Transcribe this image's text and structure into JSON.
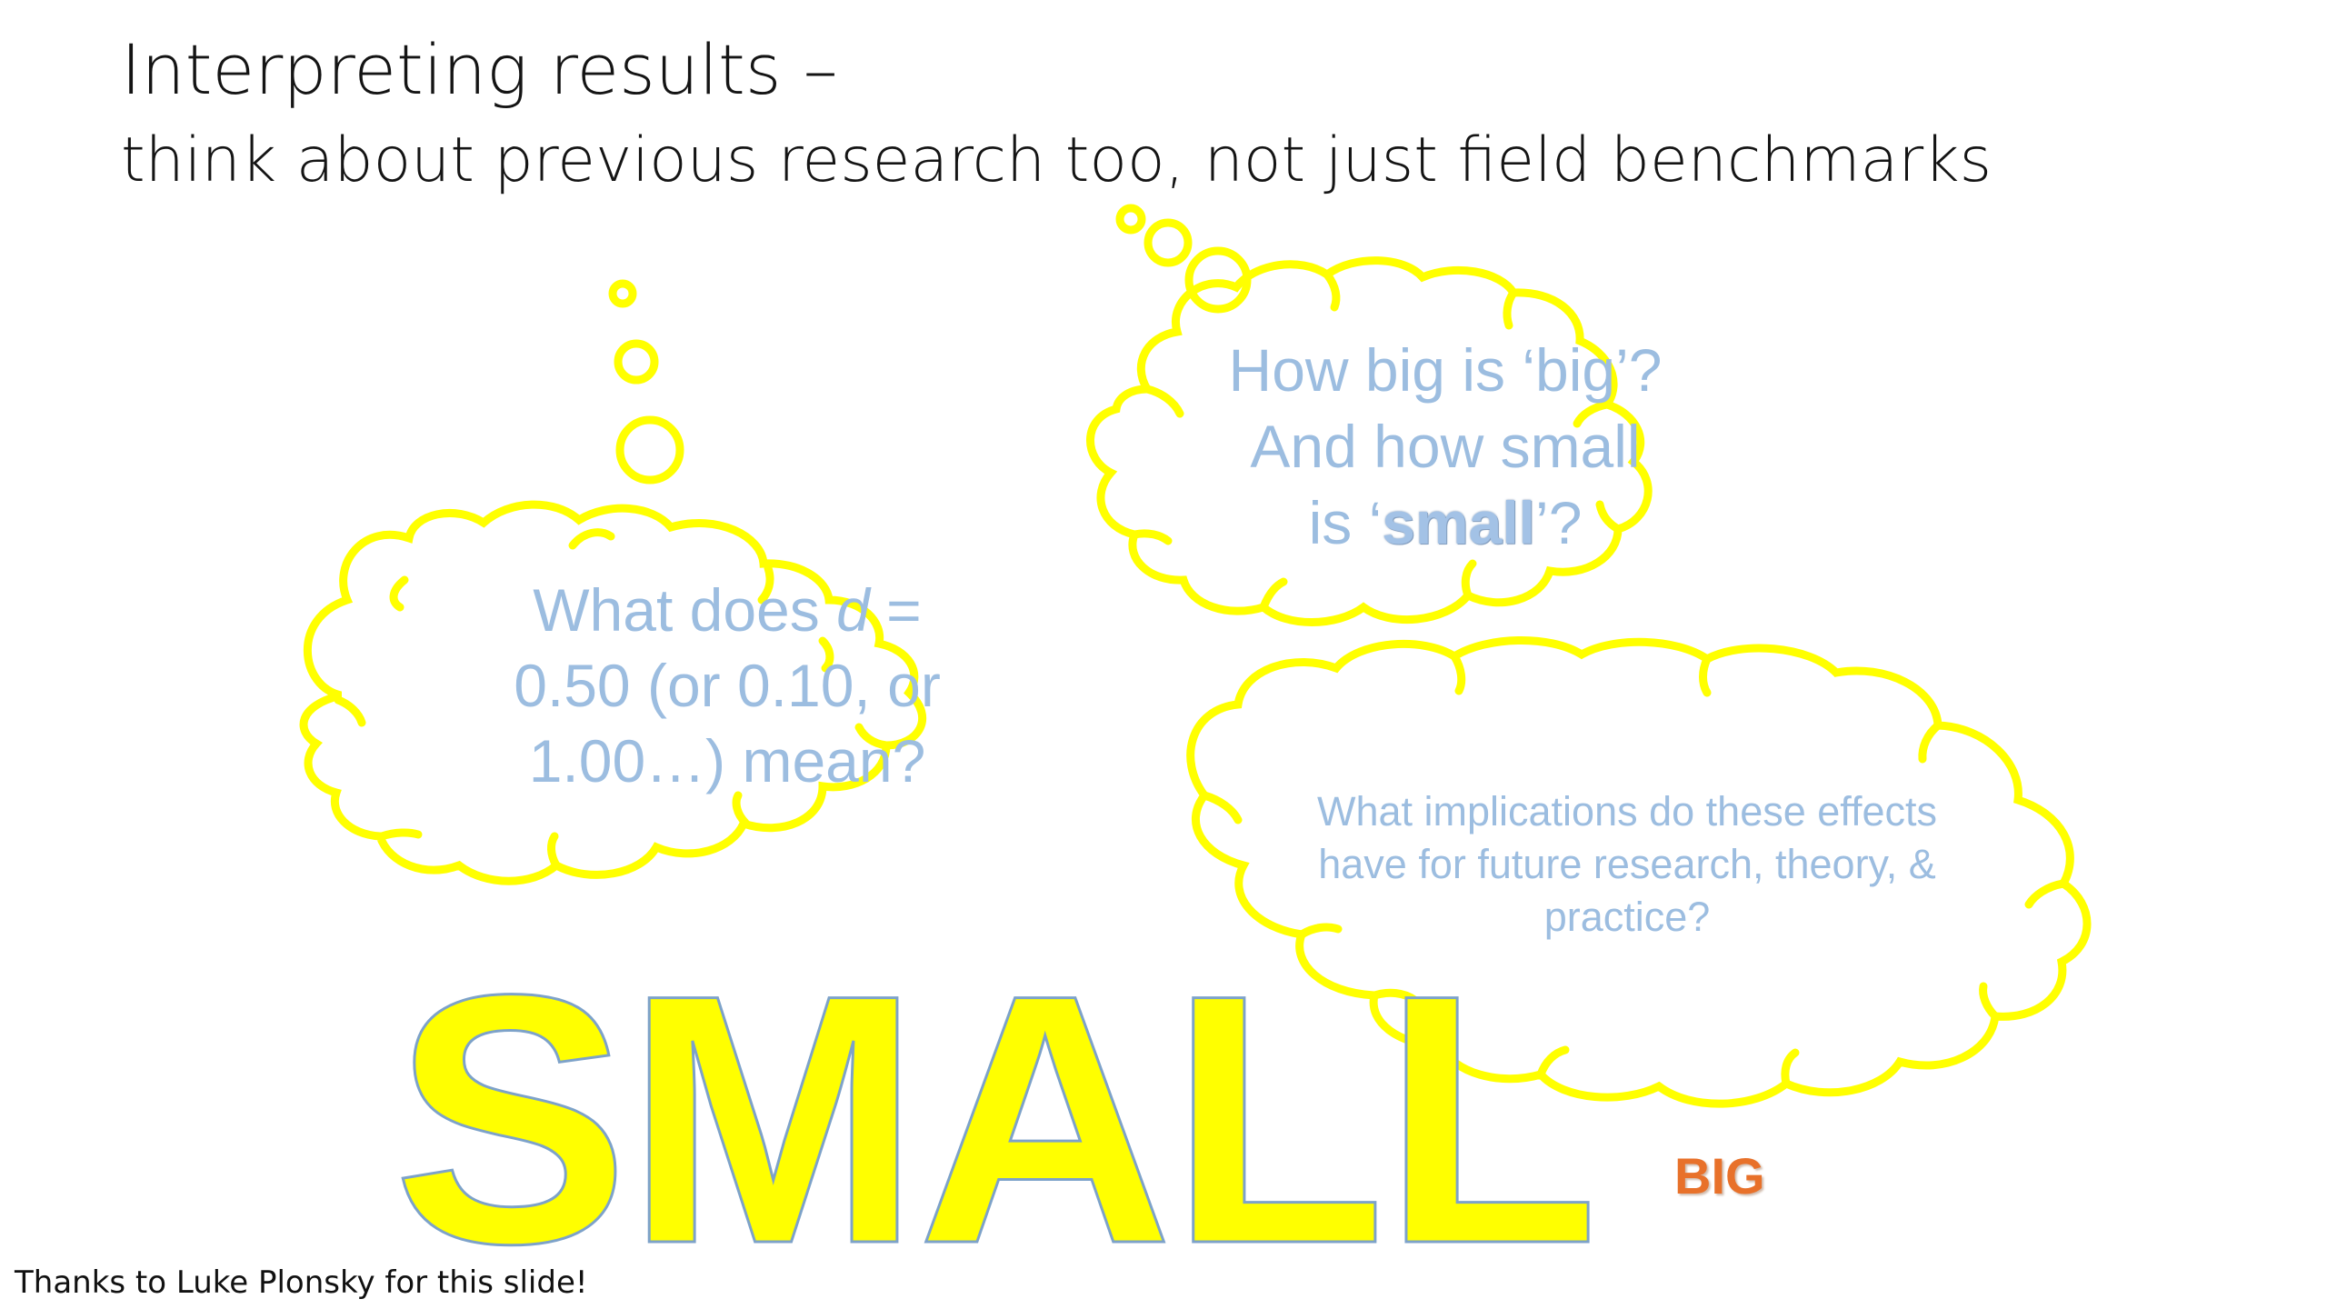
{
  "slide": {
    "title": "Interpreting results –",
    "subtitle": "think about previous research too, not just field benchmarks",
    "cloud_left": {
      "line1_prefix": "What does ",
      "line1_var": "d",
      "line1_suffix": " =",
      "line2": "0.50 (or 0.10, or",
      "line3": "1.00…) mean?"
    },
    "cloud_right": {
      "line1": "How big is ‘big’?",
      "line2": "And how small",
      "line3_prefix": "is ‘",
      "line3_emph": "small",
      "line3_suffix": "’?"
    },
    "cloud_bottom": {
      "line1": "What implications do these effects",
      "line2": "have for future research, theory, &",
      "line3": "practice?"
    },
    "big_word": "SMALL",
    "small_word": "BIG",
    "credit": "Thanks to Luke Plonsky for this slide!"
  },
  "colors": {
    "cloud_outline": "#ffff00",
    "cloud_text": "#9cbde0",
    "big_word_fill": "#ffff00",
    "big_word_outline": "#7da2c9",
    "small_word": "#e8712a",
    "title_text": "#141414"
  }
}
